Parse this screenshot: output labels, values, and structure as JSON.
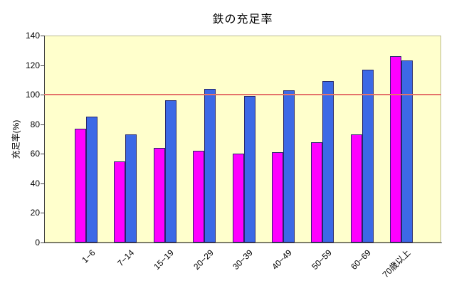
{
  "chart_data": {
    "type": "bar",
    "title": "鉄の充足率",
    "xlabel": "",
    "ylabel": "充足率(%)",
    "categories": [
      "1−6",
      "7−14",
      "15−19",
      "20−29",
      "30−39",
      "40−49",
      "50−59",
      "60−69",
      "70歳以上"
    ],
    "series": [
      {
        "name": "magenta-series",
        "color": "#ff00ff",
        "values": [
          77,
          55,
          64,
          62,
          60,
          61,
          68,
          73,
          126
        ]
      },
      {
        "name": "blue-series",
        "color": "#3c69e6",
        "values": [
          85,
          73,
          96,
          104,
          99,
          103,
          109,
          117,
          123
        ]
      }
    ],
    "reference_line": {
      "value": 100,
      "color": "#e4736b"
    },
    "ylim": [
      0,
      140
    ],
    "yticks": [
      0,
      20,
      40,
      60,
      80,
      100,
      120,
      140
    ],
    "grid": false,
    "legend_position": "none",
    "plot_background": "#ffffcc",
    "bar_border_color": "#26266b"
  }
}
